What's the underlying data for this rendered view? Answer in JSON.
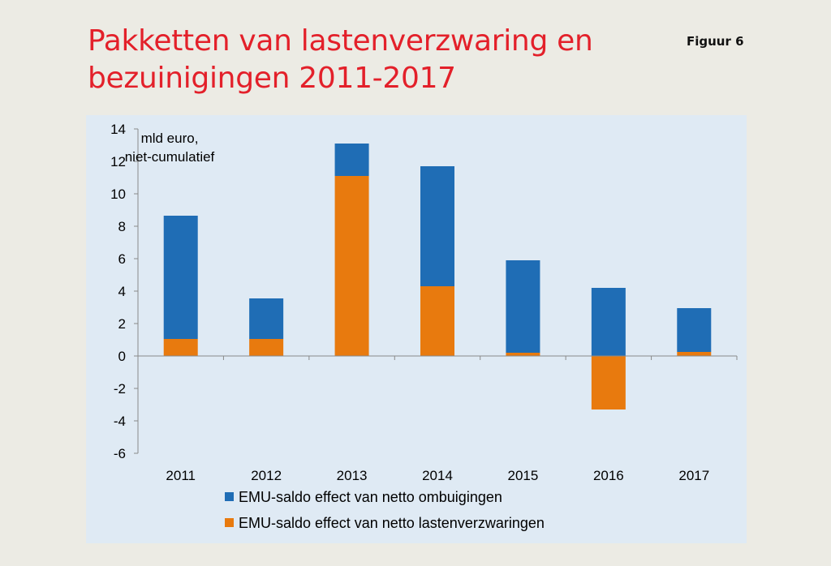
{
  "header": {
    "title_line1": "Pakketten van lastenverzwaring en",
    "title_line2": "bezuinigingen 2011-2017",
    "figure_label": "Figuur 6"
  },
  "chart_data": {
    "type": "bar",
    "stacked": true,
    "categories": [
      "2011",
      "2012",
      "2013",
      "2014",
      "2015",
      "2016",
      "2017"
    ],
    "series": [
      {
        "name": "EMU-saldo effect van netto ombuigingen",
        "color": "#1f6db5",
        "values": [
          7.6,
          2.5,
          2.0,
          7.4,
          5.7,
          4.2,
          2.7
        ]
      },
      {
        "name": "EMU-saldo effect van netto lastenverzwaringen",
        "color": "#e87a0e",
        "values": [
          1.05,
          1.05,
          11.1,
          4.3,
          0.2,
          -3.3,
          0.25
        ]
      }
    ],
    "unit_label_line1": "mld euro,",
    "unit_label_line2": "niet-cumulatief",
    "ylim": [
      -6,
      14
    ],
    "yticks": [
      14,
      12,
      10,
      8,
      6,
      4,
      2,
      0,
      -2,
      -4,
      -6
    ],
    "ytick_labels": [
      "14",
      "12",
      "10",
      "8",
      "6",
      "4",
      "2",
      "0",
      "-2",
      "-4",
      "-6"
    ],
    "legend_position": "bottom",
    "grid": false
  }
}
